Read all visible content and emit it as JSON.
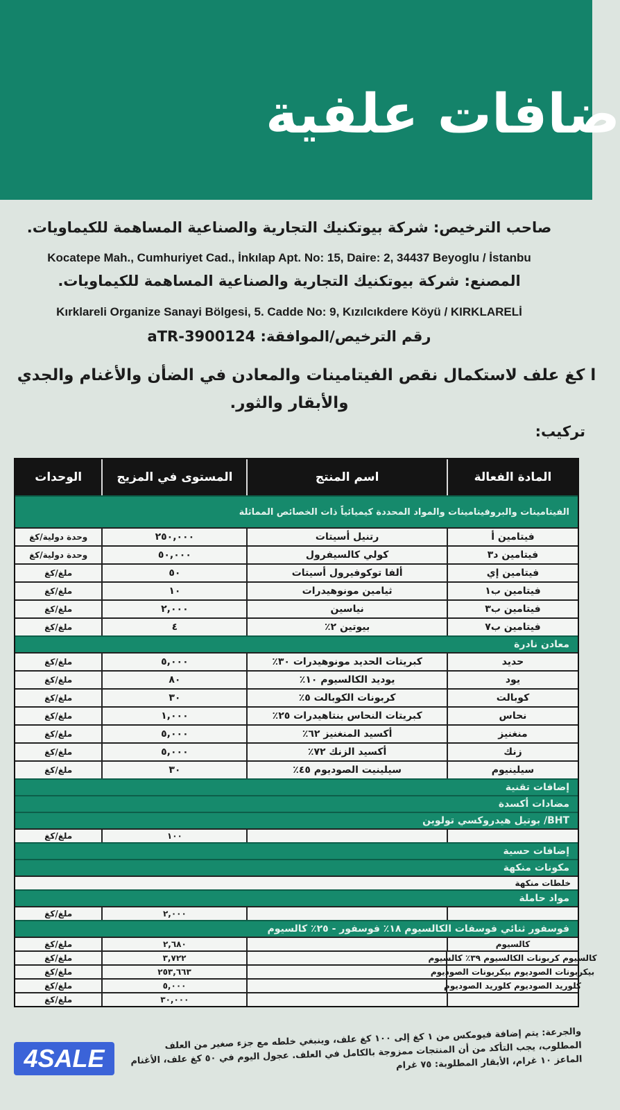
{
  "title": "ضافات علفية",
  "license_holder": "صاحب الترخيص: شركة بيوتكنيك التجارية والصناعية المساهمة للكيماويات.",
  "license_address": "Kocatepe Mah., Cumhuriyet Cad., İnkılap Apt. No: 15, Daire: 2, 34437 Beyoglu / İstanbu",
  "manufacturer": "المصنع: شركة بيوتكنيك التجارية والصناعية المساهمة للكيماويات.",
  "manufacturer_address": "Kırklareli Organize Sanayi Bölgesi, 5. Cadde No: 9, Kızılcıkdere Köyü / KIRKLARELİ",
  "license_number": "رقم الترخيص/الموافقة: 3900124-aTR",
  "purpose_1": "ا كغ علف لاستكمال نقص الفيتامينات والمعادن في الضأن والأغنام والجدي",
  "purpose_2": "والأبقار والثور.",
  "composition_label": "تركيب:",
  "table": {
    "headers": [
      "المادة الفعالة",
      "اسم المنتج",
      "المستوى في المزيج",
      "الوحدات"
    ],
    "band_vitamins": "الفيتامينات والبروفيتامينات والمواد المحددة كيميائياً ذات الخصائص المماثلة",
    "vitamins": [
      [
        "فيتامين أ",
        "رتنيل أسيتات",
        "٢٥٠,٠٠٠",
        "وحدة دولية/كغ"
      ],
      [
        "فيتامين د٣",
        "كولي كالسيفرول",
        "٥٠,٠٠٠",
        "وحدة دولية/كغ"
      ],
      [
        "فيتامين إي",
        "ألفا توكوفيرول أسيتات",
        "٥٠",
        "ملغ/كغ"
      ],
      [
        "فيتامين ب١",
        "ثيامين مونوهيدرات",
        "١٠",
        "ملغ/كغ"
      ],
      [
        "فيتامين ب٣",
        "نياسين",
        "٢,٠٠٠",
        "ملغ/كغ"
      ],
      [
        "فيتامين ب٧",
        "بيوتين ٢٪",
        "٤",
        "ملغ/كغ"
      ]
    ],
    "band_minerals": "معادن نادرة",
    "minerals": [
      [
        "حديد",
        "كبريتات الحديد مونوهيدرات ٣٠٪",
        "٥,٠٠٠",
        "ملغ/كغ"
      ],
      [
        "يود",
        "يوديد الكالسيوم ١٠٪",
        "٨٠",
        "ملغ/كغ"
      ],
      [
        "كوبالت",
        "كربونات الكوبالت ٥٪",
        "٣٠",
        "ملغ/كغ"
      ],
      [
        "نحاس",
        "كبريتات النحاس بنتاهيدرات ٢٥٪",
        "١,٠٠٠",
        "ملغ/كغ"
      ],
      [
        "منغنيز",
        "أكسيد المنغنيز ٦٢٪",
        "٥,٠٠٠",
        "ملغ/كغ"
      ],
      [
        "زنك",
        "أكسيد الزنك ٧٢٪",
        "٥,٠٠٠",
        "ملغ/كغ"
      ],
      [
        "سيلينيوم",
        "سيلينيت الصوديوم ٤٥٪",
        "٣٠",
        "ملغ/كغ"
      ]
    ],
    "band_technical": "إضافات تقنية",
    "band_antioxidants": "مضادات أكسدة",
    "bht": "BHT/ بوتيل هيدروكسي تولوين",
    "bht_row": [
      "",
      "",
      "١٠٠",
      "ملغ/كغ"
    ],
    "band_sensory": "إضافات حسية",
    "band_flavoring": "مكونات منكهة",
    "flavor_mix": "خلطات منكهة",
    "band_carriers": "مواد حاملة",
    "carrier_row": [
      "",
      "",
      "٢,٠٠٠",
      "ملغ/كغ"
    ],
    "band_phosphorus": "فوسفور ثنائي فوسفات الكالسيوم ١٨٪ فوسفور - ٢٥٪ كالسيوم",
    "carriers": [
      [
        "كالسيوم",
        "",
        "٢,٦٨٠",
        "ملغ/كغ"
      ],
      [
        "كالسيوم كربونات الكالسيوم ٣٩٪ كالسيوم",
        "",
        "٣,٧٢٢",
        "ملغ/كغ"
      ],
      [
        "بيكربونات الصوديوم بيكربونات الصوديوم",
        "",
        "٢٥٣,٦٦٣",
        "ملغ/كغ"
      ],
      [
        "كلوريد الصوديوم كلوريد الصوديوم",
        "",
        "٥,٠٠٠",
        "ملغ/كغ"
      ],
      [
        "",
        "",
        "٣٠,٠٠٠",
        "ملغ/كغ"
      ]
    ]
  },
  "usage_text": "والجرعة: يتم إضافة فيومكس من ١ كغ إلى ١٠٠ كغ علف، وينبغي خلطه مع جزء صغير من العلف المطلوب، يجب التأكد من أن المنتجات ممزوجة بالكامل في العلف. عجول اليوم في ٥٠ كغ علف، الأغنام الماعز ١٠ غرام، الأبقار المطلوبة: ٧٥ غرام",
  "watermark": "4SALE",
  "colors": {
    "brand_green": "#14836a",
    "table_header": "#141414",
    "watermark_blue": "#3b63d8"
  }
}
